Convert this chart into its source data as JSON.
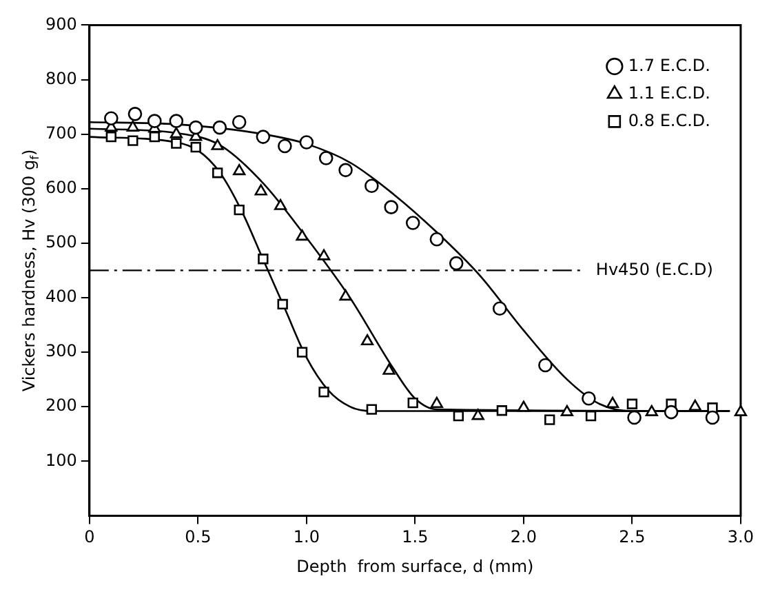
{
  "chart_data": {
    "type": "scatter",
    "xlabel": "Depth  from surface, d (mm)",
    "ylabel": "Vickers hardness, Hv (300 g$_{f}$)",
    "xlim": [
      0,
      3
    ],
    "xticks": [
      0,
      {
        "value": 0.5,
        "label": "0.5"
      },
      {
        "value": 1,
        "label": "1.0"
      },
      1.5,
      {
        "value": 2,
        "label": "2.0"
      },
      2.5,
      {
        "value": 3,
        "label": "3.0"
      }
    ],
    "ylim": [
      0,
      900
    ],
    "yticks": [
      100,
      200,
      300,
      400,
      500,
      600,
      700,
      800,
      900
    ],
    "grid": false,
    "legend": "top right",
    "series": [
      {
        "name": "1.7 E.C.D.",
        "color": "#000000",
        "marker": "circle",
        "x": [
          0.1,
          0.21,
          0.3,
          0.4,
          0.49,
          0.6,
          0.69,
          0.8,
          0.9,
          1.0,
          1.09,
          1.18,
          1.3,
          1.39,
          1.49,
          1.6,
          1.69,
          1.89,
          2.1,
          2.3,
          2.51,
          2.68,
          2.87
        ],
        "values": [
          729,
          737,
          724,
          724,
          712,
          712,
          722,
          695,
          678,
          685,
          656,
          634,
          605,
          566,
          537,
          507,
          463,
          380,
          276,
          215,
          180,
          190,
          180
        ]
      },
      {
        "name": "1.1 E.C.D.",
        "color": "#000000",
        "marker": "triangle",
        "x": [
          0.1,
          0.2,
          0.3,
          0.4,
          0.49,
          0.59,
          0.69,
          0.79,
          0.88,
          0.98,
          1.08,
          1.18,
          1.28,
          1.38,
          1.6,
          1.79,
          2.0,
          2.2,
          2.41,
          2.59,
          2.79,
          3.0
        ],
        "values": [
          712,
          712,
          710,
          700,
          695,
          678,
          632,
          595,
          568,
          512,
          476,
          402,
          320,
          266,
          205,
          183,
          198,
          190,
          205,
          190,
          200,
          190
        ]
      },
      {
        "name": "0.8 E.C.D.",
        "color": "#000000",
        "marker": "square",
        "x": [
          0.1,
          0.2,
          0.3,
          0.4,
          0.49,
          0.59,
          0.69,
          0.8,
          0.89,
          0.98,
          1.08,
          1.3,
          1.49,
          1.7,
          1.9,
          2.12,
          2.31,
          2.5,
          2.68,
          2.87
        ],
        "values": [
          695,
          688,
          695,
          683,
          676,
          629,
          561,
          471,
          388,
          300,
          227,
          195,
          207,
          183,
          193,
          176,
          183,
          205,
          205,
          198
        ]
      },
      {
        "type": "line",
        "color": "#000000",
        "marker": "none",
        "x": [
          0,
          0.4,
          0.8,
          1.0,
          1.2,
          1.4,
          1.6,
          1.8,
          2.0,
          2.2,
          2.35,
          2.5,
          2.95
        ],
        "values": [
          722,
          718,
          700,
          682,
          648,
          590,
          520,
          440,
          340,
          250,
          205,
          192,
          192
        ]
      },
      {
        "type": "line",
        "color": "#000000",
        "marker": "none",
        "x": [
          0,
          0.4,
          0.6,
          0.8,
          1.0,
          1.2,
          1.4,
          1.5,
          1.6,
          2.95
        ],
        "values": [
          710,
          702,
          680,
          610,
          510,
          400,
          270,
          215,
          195,
          192
        ]
      },
      {
        "type": "line",
        "color": "#000000",
        "marker": "none",
        "x": [
          0,
          0.4,
          0.5,
          0.6,
          0.7,
          0.8,
          0.9,
          1.0,
          1.1,
          1.2,
          1.3,
          2.95
        ],
        "values": [
          695,
          685,
          670,
          630,
          560,
          470,
          380,
          290,
          230,
          200,
          192,
          192
        ]
      }
    ],
    "ref_lines": [
      {
        "axis": "y",
        "value": 450,
        "label": "Hv450 (E.C.D)",
        "color": "#000000",
        "line_style": "dashed"
      }
    ]
  }
}
